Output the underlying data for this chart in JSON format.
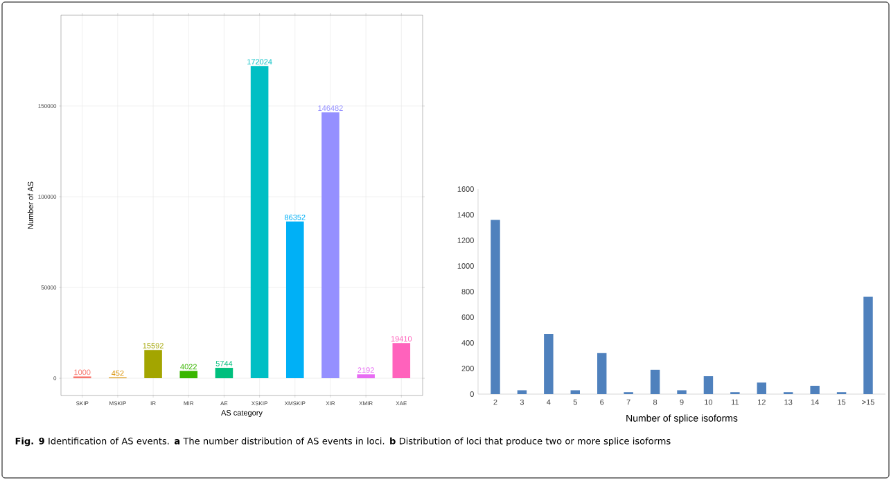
{
  "chart_data": [
    {
      "type": "bar",
      "xlabel": "AS category",
      "ylabel": "Number of AS",
      "categories": [
        "SKIP",
        "MSKIP",
        "IR",
        "MIR",
        "AE",
        "XSKIP",
        "XMSKIP",
        "XIR",
        "XMIR",
        "XAE"
      ],
      "values": [
        1000,
        452,
        15592,
        4022,
        5744,
        172024,
        86352,
        146482,
        2192,
        19410
      ],
      "colors": [
        "#f8766d",
        "#d89000",
        "#a3a500",
        "#39b600",
        "#00bf7d",
        "#00bfc4",
        "#00b0f6",
        "#9590ff",
        "#e76bf3",
        "#ff62bc"
      ],
      "ylim": [
        -9500,
        200000
      ],
      "yticks": [
        0,
        50000,
        100000,
        150000
      ],
      "grid": true,
      "data_labels": true,
      "annotations": [
        "**Fig. 9** Identification of AS events. **a** The number distribution of AS events in loci. **b** Distribution of loci that produce two or more splice isoforms"
      ]
    },
    {
      "type": "bar",
      "xlabel": "Number of splice isoforms",
      "categories": [
        "2",
        "3",
        "4",
        "5",
        "6",
        "7",
        "8",
        "9",
        "10",
        "11",
        "12",
        "13",
        "14",
        "15",
        ">15"
      ],
      "values": [
        1360,
        30,
        470,
        30,
        320,
        15,
        190,
        30,
        140,
        15,
        90,
        15,
        65,
        15,
        760
      ],
      "color": "#4f81bd",
      "ylim": [
        0,
        1600
      ],
      "yticks": [
        0,
        200,
        400,
        600,
        800,
        1000,
        1200,
        1400,
        1600
      ]
    }
  ]
}
